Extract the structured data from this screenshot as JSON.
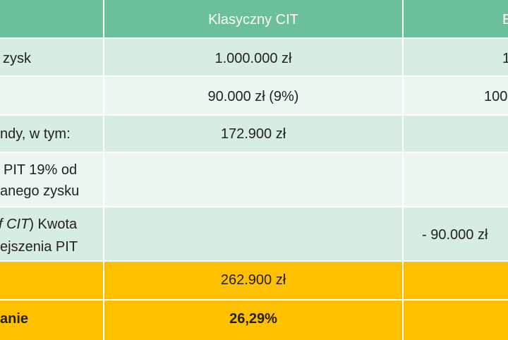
{
  "table": {
    "header": [
      "Klasyczny CIT",
      "E"
    ],
    "rows": [
      {
        "label": "zysk",
        "classic": "1.000.000 zł",
        "other": "1"
      },
      {
        "classic": "90.000 zł (9%)",
        "other": "100"
      },
      {
        "label": "ndy, w tym:",
        "classic": "172.900 zł"
      },
      {
        "label_lines": [
          "PIT 19% od",
          "anego zysku"
        ]
      },
      {
        "label_italic": "f CIT",
        "label_lines": [
          ") Kwota",
          "ejszenia PIT"
        ],
        "other": "- 90.000 zł"
      },
      {
        "classic": "262.900 zł"
      },
      {
        "label": "anie",
        "classic": "26,29%"
      }
    ]
  }
}
